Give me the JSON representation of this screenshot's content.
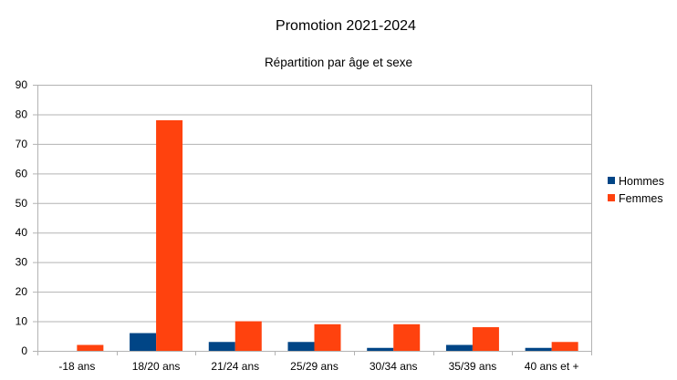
{
  "chart_data": {
    "type": "bar",
    "title": "Promotion 2021-2024",
    "subtitle": "Répartition par âge et sexe",
    "xlabel": "",
    "ylabel": "",
    "categories": [
      "-18 ans",
      "18/20 ans",
      "21/24 ans",
      "25/29 ans",
      "30/34 ans",
      "35/39 ans",
      "40 ans et +"
    ],
    "series": [
      {
        "name": "Hommes",
        "color": "#004586",
        "values": [
          0,
          6,
          3,
          3,
          1,
          2,
          1
        ]
      },
      {
        "name": "Femmes",
        "color": "#ff420e",
        "values": [
          2,
          78,
          10,
          9,
          9,
          8,
          3
        ]
      }
    ],
    "ylim": [
      0,
      90
    ],
    "yticks": [
      0,
      10,
      20,
      30,
      40,
      50,
      60,
      70,
      80,
      90
    ],
    "grid": true,
    "legend": "right"
  }
}
